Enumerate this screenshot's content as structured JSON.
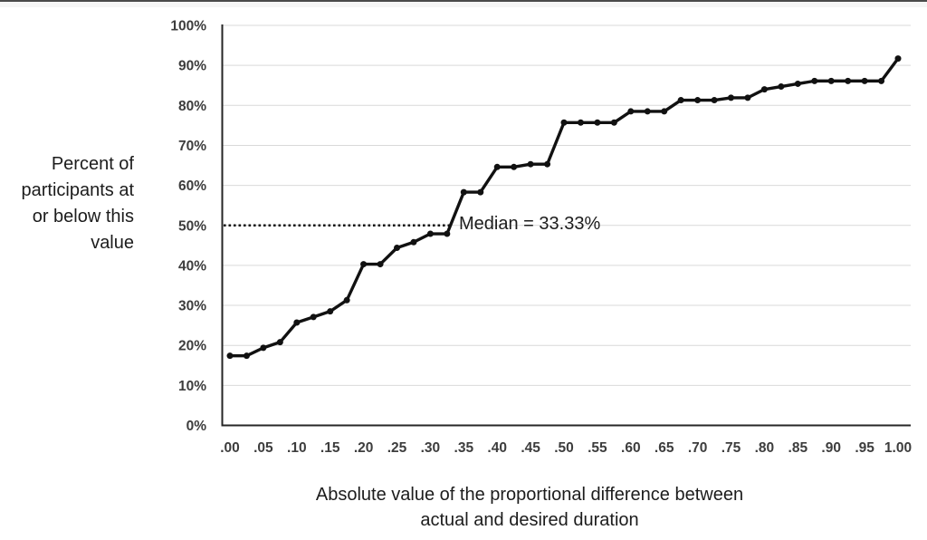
{
  "chart_data": {
    "type": "line",
    "title": "",
    "xlabel": "Absolute value of the proportional difference between actual and desired duration",
    "xlabel_display": "Absolute value of the proportional difference between\nactual and desired duration",
    "ylabel": "Percent of participants at or below this value",
    "ylabel_display": "Percent of\nparticipants at\nor below this\nvalue",
    "x": [
      0.0,
      0.025,
      0.05,
      0.075,
      0.1,
      0.125,
      0.15,
      0.175,
      0.2,
      0.225,
      0.25,
      0.275,
      0.3,
      0.325,
      0.35,
      0.375,
      0.4,
      0.425,
      0.45,
      0.475,
      0.5,
      0.525,
      0.55,
      0.575,
      0.6,
      0.625,
      0.65,
      0.675,
      0.7,
      0.725,
      0.75,
      0.775,
      0.8,
      0.825,
      0.85,
      0.875,
      0.9,
      0.925,
      0.95,
      0.975,
      1.0
    ],
    "y_percent": [
      17.4,
      17.4,
      19.4,
      20.8,
      25.7,
      27.1,
      28.5,
      31.3,
      40.3,
      40.3,
      44.4,
      45.8,
      47.9,
      47.9,
      58.3,
      58.3,
      64.6,
      64.6,
      65.3,
      65.3,
      75.7,
      75.7,
      75.7,
      75.7,
      78.5,
      78.5,
      78.5,
      81.3,
      81.3,
      81.3,
      81.9,
      81.9,
      84.0,
      84.7,
      85.4,
      86.1,
      86.1,
      86.1,
      86.1,
      86.1,
      91.7
    ],
    "xlim": [
      0,
      1
    ],
    "ylim": [
      0,
      100
    ],
    "x_tick_labels": [
      ".00",
      ".05",
      ".10",
      ".15",
      ".20",
      ".25",
      ".30",
      ".35",
      ".40",
      ".45",
      ".50",
      ".55",
      ".60",
      ".65",
      ".70",
      ".75",
      ".80",
      ".85",
      ".90",
      ".95",
      "1.00"
    ],
    "y_tick_labels": [
      "0%",
      "10%",
      "20%",
      "30%",
      "40%",
      "50%",
      "60%",
      "70%",
      "80%",
      "90%",
      "100%"
    ],
    "grid": "horizontal",
    "legend": "none",
    "annotation": {
      "label": "Median = 33.33%",
      "line_at_percent": 50,
      "line_x_start": 0.0,
      "line_x_end": 0.33,
      "style": "dotted"
    },
    "colors": {
      "line": "#111111",
      "marker": "#111111",
      "grid": "#d9d9d9",
      "axis": "#262626",
      "tick_text": "#3d3d3d",
      "title_text": "#1c1c1c"
    }
  }
}
